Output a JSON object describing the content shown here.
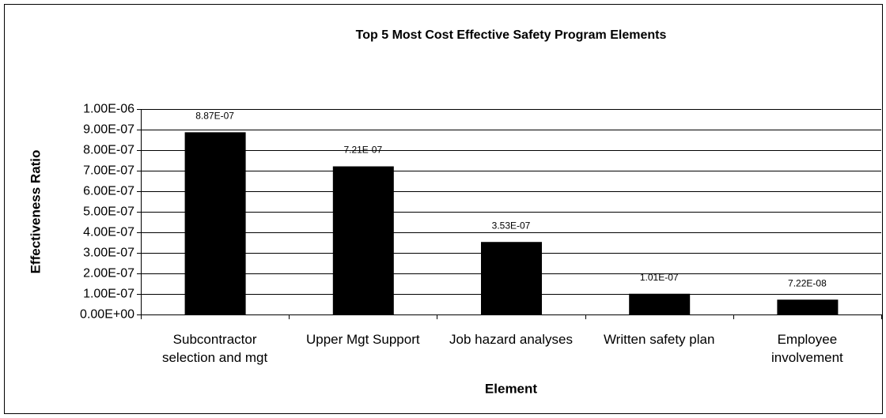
{
  "chart_data": {
    "type": "bar",
    "title": "Top 5 Most Cost Effective Safety Program Elements",
    "x_label": "Element",
    "y_label": "Effectiveness Ratio",
    "categories": [
      "Subcontractor selection and mgt",
      "Upper Mgt Support",
      "Job hazard analyses",
      "Written safety plan",
      "Employee involvement"
    ],
    "values": [
      8.87e-07,
      7.21e-07,
      3.53e-07,
      1.01e-07,
      7.22e-08
    ],
    "value_labels": [
      "8.87E-07",
      "7.21E-07",
      "3.53E-07",
      "1.01E-07",
      "7.22E-08"
    ],
    "color": "#000000",
    "ylim": [
      0,
      1e-06
    ],
    "yticks": [
      {
        "value": 0,
        "label": "0.00E+00"
      },
      {
        "value": 1e-07,
        "label": "1.00E-07"
      },
      {
        "value": 2e-07,
        "label": "2.00E-07"
      },
      {
        "value": 3e-07,
        "label": "3.00E-07"
      },
      {
        "value": 4e-07,
        "label": "4.00E-07"
      },
      {
        "value": 5e-07,
        "label": "5.00E-07"
      },
      {
        "value": 6e-07,
        "label": "6.00E-07"
      },
      {
        "value": 7e-07,
        "label": "7.00E-07"
      },
      {
        "value": 8e-07,
        "label": "8.00E-07"
      },
      {
        "value": 9e-07,
        "label": "9.00E-07"
      },
      {
        "value": 1e-06,
        "label": "1.00E-06"
      }
    ],
    "grid": true
  }
}
